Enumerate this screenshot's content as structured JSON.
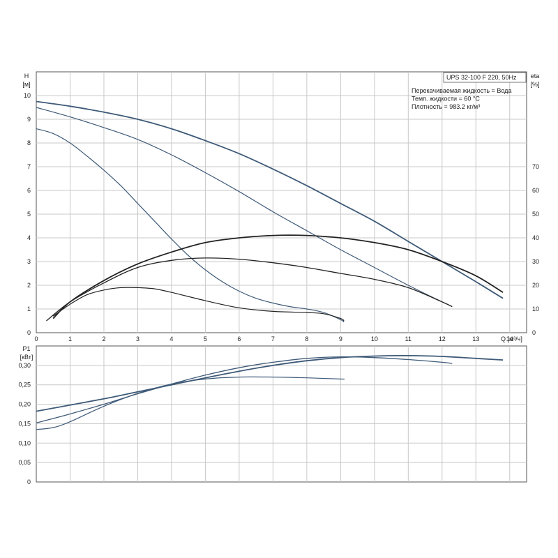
{
  "chart_data": [
    {
      "type": "line",
      "panel": "head-efficiency",
      "model_label": "UPS 32-100 F 220, 50Hz",
      "info_lines": [
        "Перекачиваемая жидкость = Вода",
        "Темп. жидкости = 60 °C",
        "Плотность = 983.2 кг/м³"
      ],
      "y_label_top": "H",
      "y_label_unit": "[м]",
      "y2_label_top": "eta",
      "y2_label_unit": "[%]",
      "x_label": "Q [м³/ч]",
      "xlim": [
        0,
        14.5
      ],
      "ylim": [
        0,
        11
      ],
      "y2lim": [
        0,
        110
      ],
      "x_ticks": [
        0,
        1,
        2,
        3,
        4,
        5,
        6,
        7,
        8,
        9,
        10,
        11,
        12,
        13,
        14
      ],
      "y_ticks": [
        0,
        1,
        2,
        3,
        4,
        5,
        6,
        7,
        8,
        9,
        10
      ],
      "y2_ticks": [
        0,
        10,
        20,
        30,
        40,
        50,
        60,
        70
      ],
      "grid": true,
      "head_series": [
        {
          "x": [
            0,
            1,
            2,
            3,
            4,
            5,
            6,
            7,
            8,
            9,
            10,
            11,
            12,
            13,
            13.8
          ],
          "y": [
            9.75,
            9.55,
            9.3,
            9.0,
            8.6,
            8.1,
            7.55,
            6.9,
            6.2,
            5.45,
            4.7,
            3.85,
            3.0,
            2.15,
            1.45
          ]
        },
        {
          "x": [
            0,
            1,
            2,
            3,
            4,
            5,
            6,
            7,
            8,
            9,
            10,
            11,
            12,
            12.3
          ],
          "y": [
            9.5,
            9.1,
            8.65,
            8.15,
            7.5,
            6.75,
            5.95,
            5.1,
            4.3,
            3.5,
            2.75,
            2.0,
            1.3,
            1.1
          ]
        },
        {
          "x": [
            0,
            0.5,
            1,
            1.5,
            2,
            2.5,
            3,
            3.5,
            4,
            4.5,
            5,
            5.5,
            6,
            6.5,
            7,
            7.5,
            8,
            8.5,
            9,
            9.1
          ],
          "y": [
            8.6,
            8.4,
            8.0,
            7.45,
            6.85,
            6.2,
            5.45,
            4.7,
            3.95,
            3.25,
            2.65,
            2.15,
            1.75,
            1.45,
            1.25,
            1.1,
            1.0,
            0.85,
            0.55,
            0.45
          ]
        }
      ],
      "eta_series": [
        {
          "x": [
            0.5,
            1,
            2,
            3,
            4,
            5,
            6,
            7,
            8,
            9,
            10,
            11,
            12,
            13,
            13.8
          ],
          "y": [
            6,
            13,
            22,
            29,
            34,
            38,
            40,
            41,
            41,
            40,
            38,
            35,
            30,
            24,
            17
          ]
        },
        {
          "x": [
            0.3,
            1,
            2,
            3,
            4,
            5,
            6,
            7,
            8,
            9,
            10,
            11,
            12,
            12.3
          ],
          "y": [
            5,
            13,
            21,
            27.5,
            30.5,
            31.5,
            31,
            29.5,
            27.5,
            25,
            22.5,
            19,
            13,
            11
          ]
        },
        {
          "x": [
            0.5,
            1,
            1.5,
            2,
            2.5,
            3,
            3.5,
            4,
            5,
            6,
            7,
            8,
            8.5,
            9,
            9.1
          ],
          "y": [
            7,
            12,
            16,
            18,
            19,
            19,
            18.5,
            17,
            13.5,
            10.5,
            9,
            8.5,
            8,
            6,
            5
          ]
        }
      ]
    },
    {
      "type": "line",
      "panel": "power",
      "y_label_top": "P1",
      "y_label_unit": "[кВт]",
      "xlim": [
        0,
        14.5
      ],
      "ylim": [
        0,
        0.35
      ],
      "y_ticks": [
        0,
        0.05,
        0.1,
        0.15,
        0.2,
        0.25,
        0.3
      ],
      "y_tick_labels": [
        "0",
        "0,05",
        "0,10",
        "0,15",
        "0,20",
        "0,25",
        "0,30"
      ],
      "grid": true,
      "series": [
        {
          "x": [
            0,
            1,
            2,
            3,
            4,
            5,
            6,
            7,
            8,
            9,
            10,
            11,
            12,
            13,
            13.8
          ],
          "y": [
            0.182,
            0.198,
            0.214,
            0.232,
            0.25,
            0.268,
            0.285,
            0.3,
            0.312,
            0.32,
            0.324,
            0.325,
            0.323,
            0.318,
            0.314
          ]
        },
        {
          "x": [
            0,
            1,
            2,
            3,
            4,
            5,
            6,
            7,
            8,
            9,
            10,
            11,
            12,
            12.3
          ],
          "y": [
            0.152,
            0.175,
            0.2,
            0.227,
            0.252,
            0.275,
            0.294,
            0.308,
            0.318,
            0.322,
            0.32,
            0.315,
            0.308,
            0.305
          ]
        },
        {
          "x": [
            0,
            0.5,
            1,
            2,
            3,
            4,
            5,
            6,
            7,
            8,
            9,
            9.1
          ],
          "y": [
            0.135,
            0.14,
            0.155,
            0.195,
            0.228,
            0.252,
            0.265,
            0.27,
            0.27,
            0.268,
            0.265,
            0.265
          ]
        }
      ],
      "colors": {
        "curve": "#3e5a78",
        "grid": "#c8c8c8",
        "axis": "#555555"
      }
    }
  ]
}
